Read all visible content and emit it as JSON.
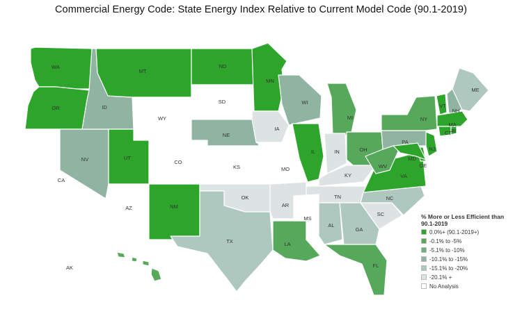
{
  "title": "Commercial Energy Code: State Energy Index Relative to Current Model Code (90.1-2019)",
  "colors": {
    "c0": "#2ca52a",
    "c1": "#56a85a",
    "c2": "#74ab80",
    "c3": "#8fb4a1",
    "c4": "#aec8c0",
    "c5": "#dde3e3",
    "na": "#ffffff"
  },
  "legend": {
    "title": "% More or Less Efficient than 90.1-2019",
    "items": [
      {
        "key": "c0",
        "label": "0.0%+ (90.1-2019+)"
      },
      {
        "key": "c1",
        "label": "-0.1% to -5%"
      },
      {
        "key": "c2",
        "label": "-5.1% to -10%"
      },
      {
        "key": "c3",
        "label": "-10.1% to -15%"
      },
      {
        "key": "c4",
        "label": "-15.1% to -20%"
      },
      {
        "key": "c5",
        "label": "-20.1% +"
      },
      {
        "key": "na",
        "label": "No Analysis"
      }
    ]
  },
  "states": [
    {
      "abbr": "WA",
      "category": "c0"
    },
    {
      "abbr": "OR",
      "category": "c0"
    },
    {
      "abbr": "CA",
      "category": "na"
    },
    {
      "abbr": "NV",
      "category": "c3"
    },
    {
      "abbr": "ID",
      "category": "c3"
    },
    {
      "abbr": "MT",
      "category": "c0"
    },
    {
      "abbr": "WY",
      "category": "na"
    },
    {
      "abbr": "UT",
      "category": "c0"
    },
    {
      "abbr": "AZ",
      "category": "na"
    },
    {
      "abbr": "CO",
      "category": "na"
    },
    {
      "abbr": "NM",
      "category": "c0"
    },
    {
      "abbr": "ND",
      "category": "c0"
    },
    {
      "abbr": "SD",
      "category": "na"
    },
    {
      "abbr": "NE",
      "category": "c3"
    },
    {
      "abbr": "KS",
      "category": "na"
    },
    {
      "abbr": "OK",
      "category": "c5"
    },
    {
      "abbr": "TX",
      "category": "c4"
    },
    {
      "abbr": "MN",
      "category": "c0"
    },
    {
      "abbr": "IA",
      "category": "c5"
    },
    {
      "abbr": "MO",
      "category": "na"
    },
    {
      "abbr": "AR",
      "category": "c5"
    },
    {
      "abbr": "LA",
      "category": "c1"
    },
    {
      "abbr": "WI",
      "category": "c3"
    },
    {
      "abbr": "IL",
      "category": "c0"
    },
    {
      "abbr": "MI",
      "category": "c1"
    },
    {
      "abbr": "IN",
      "category": "c5"
    },
    {
      "abbr": "OH",
      "category": "c1"
    },
    {
      "abbr": "KY",
      "category": "c5"
    },
    {
      "abbr": "TN",
      "category": "c5"
    },
    {
      "abbr": "MS",
      "category": "na"
    },
    {
      "abbr": "AL",
      "category": "c4"
    },
    {
      "abbr": "GA",
      "category": "c4"
    },
    {
      "abbr": "FL",
      "category": "c1"
    },
    {
      "abbr": "SC",
      "category": "c5"
    },
    {
      "abbr": "NC",
      "category": "c4"
    },
    {
      "abbr": "VA",
      "category": "c0"
    },
    {
      "abbr": "WV",
      "category": "c1"
    },
    {
      "abbr": "PA",
      "category": "c3"
    },
    {
      "abbr": "NY",
      "category": "c1"
    },
    {
      "abbr": "VT",
      "category": "c0"
    },
    {
      "abbr": "NH",
      "category": "c3"
    },
    {
      "abbr": "ME",
      "category": "c4"
    },
    {
      "abbr": "MA",
      "category": "c0"
    },
    {
      "abbr": "CT",
      "category": "c0"
    },
    {
      "abbr": "RI",
      "category": "c0"
    },
    {
      "abbr": "NJ",
      "category": "c0"
    },
    {
      "abbr": "DE",
      "category": "c0"
    },
    {
      "abbr": "MD",
      "category": "c0"
    },
    {
      "abbr": "AK",
      "category": "na"
    },
    {
      "abbr": "HI",
      "category": "c1"
    }
  ]
}
